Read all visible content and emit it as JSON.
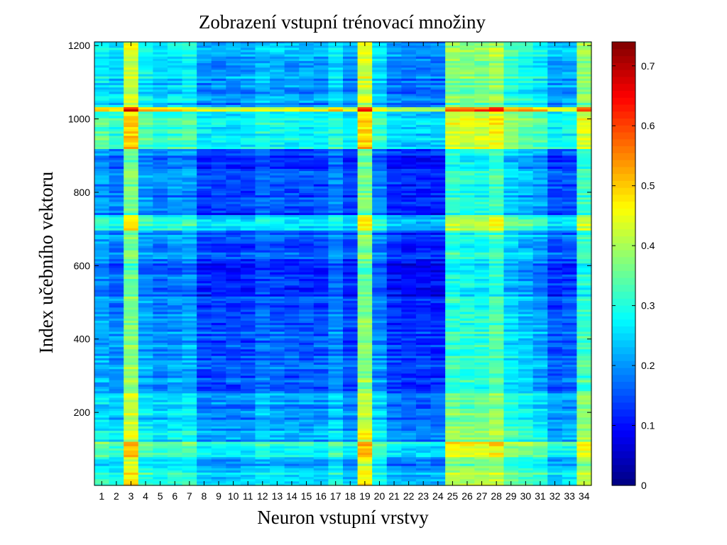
{
  "chart_data": {
    "type": "heatmap",
    "title": "Zobrazení vstupní trénovací množiny",
    "xlabel": "Neuron vstupní vrstvy",
    "ylabel": "Index učebního vektoru",
    "x_categories": [
      "1",
      "2",
      "3",
      "4",
      "5",
      "6",
      "7",
      "8",
      "9",
      "10",
      "11",
      "12",
      "13",
      "14",
      "15",
      "16",
      "17",
      "18",
      "19",
      "20",
      "21",
      "22",
      "23",
      "24",
      "25",
      "26",
      "27",
      "28",
      "29",
      "30",
      "31",
      "32",
      "33",
      "34"
    ],
    "ylim": [
      1,
      1210
    ],
    "y_ticks": [
      200,
      400,
      600,
      800,
      1000,
      1200
    ],
    "colorbar": {
      "range": [
        0,
        0.74
      ],
      "ticks": [
        0,
        0.1,
        0.2,
        0.3,
        0.4,
        0.5,
        0.6,
        0.7
      ],
      "colormap": "jet"
    },
    "grid": false,
    "column_mean_values": [
      0.24,
      0.22,
      0.4,
      0.24,
      0.22,
      0.23,
      0.24,
      0.17,
      0.17,
      0.17,
      0.17,
      0.2,
      0.19,
      0.18,
      0.18,
      0.18,
      0.22,
      0.17,
      0.4,
      0.22,
      0.16,
      0.15,
      0.15,
      0.15,
      0.34,
      0.33,
      0.33,
      0.36,
      0.28,
      0.26,
      0.24,
      0.18,
      0.19,
      0.35
    ],
    "row_band_values": [
      {
        "from": 1,
        "to": 40,
        "value": 0.3
      },
      {
        "from": 40,
        "to": 80,
        "value": 0.25
      },
      {
        "from": 80,
        "to": 120,
        "value": 0.35
      },
      {
        "from": 120,
        "to": 180,
        "value": 0.26
      },
      {
        "from": 180,
        "to": 260,
        "value": 0.24
      },
      {
        "from": 260,
        "to": 330,
        "value": 0.2
      },
      {
        "from": 330,
        "to": 420,
        "value": 0.19
      },
      {
        "from": 420,
        "to": 520,
        "value": 0.17
      },
      {
        "from": 520,
        "to": 620,
        "value": 0.15
      },
      {
        "from": 620,
        "to": 700,
        "value": 0.19
      },
      {
        "from": 700,
        "to": 740,
        "value": 0.3
      },
      {
        "from": 740,
        "to": 920,
        "value": 0.17
      },
      {
        "from": 920,
        "to": 1020,
        "value": 0.32
      },
      {
        "from": 1020,
        "to": 1035,
        "value": 0.5
      },
      {
        "from": 1035,
        "to": 1110,
        "value": 0.24
      },
      {
        "from": 1110,
        "to": 1210,
        "value": 0.27
      }
    ]
  }
}
